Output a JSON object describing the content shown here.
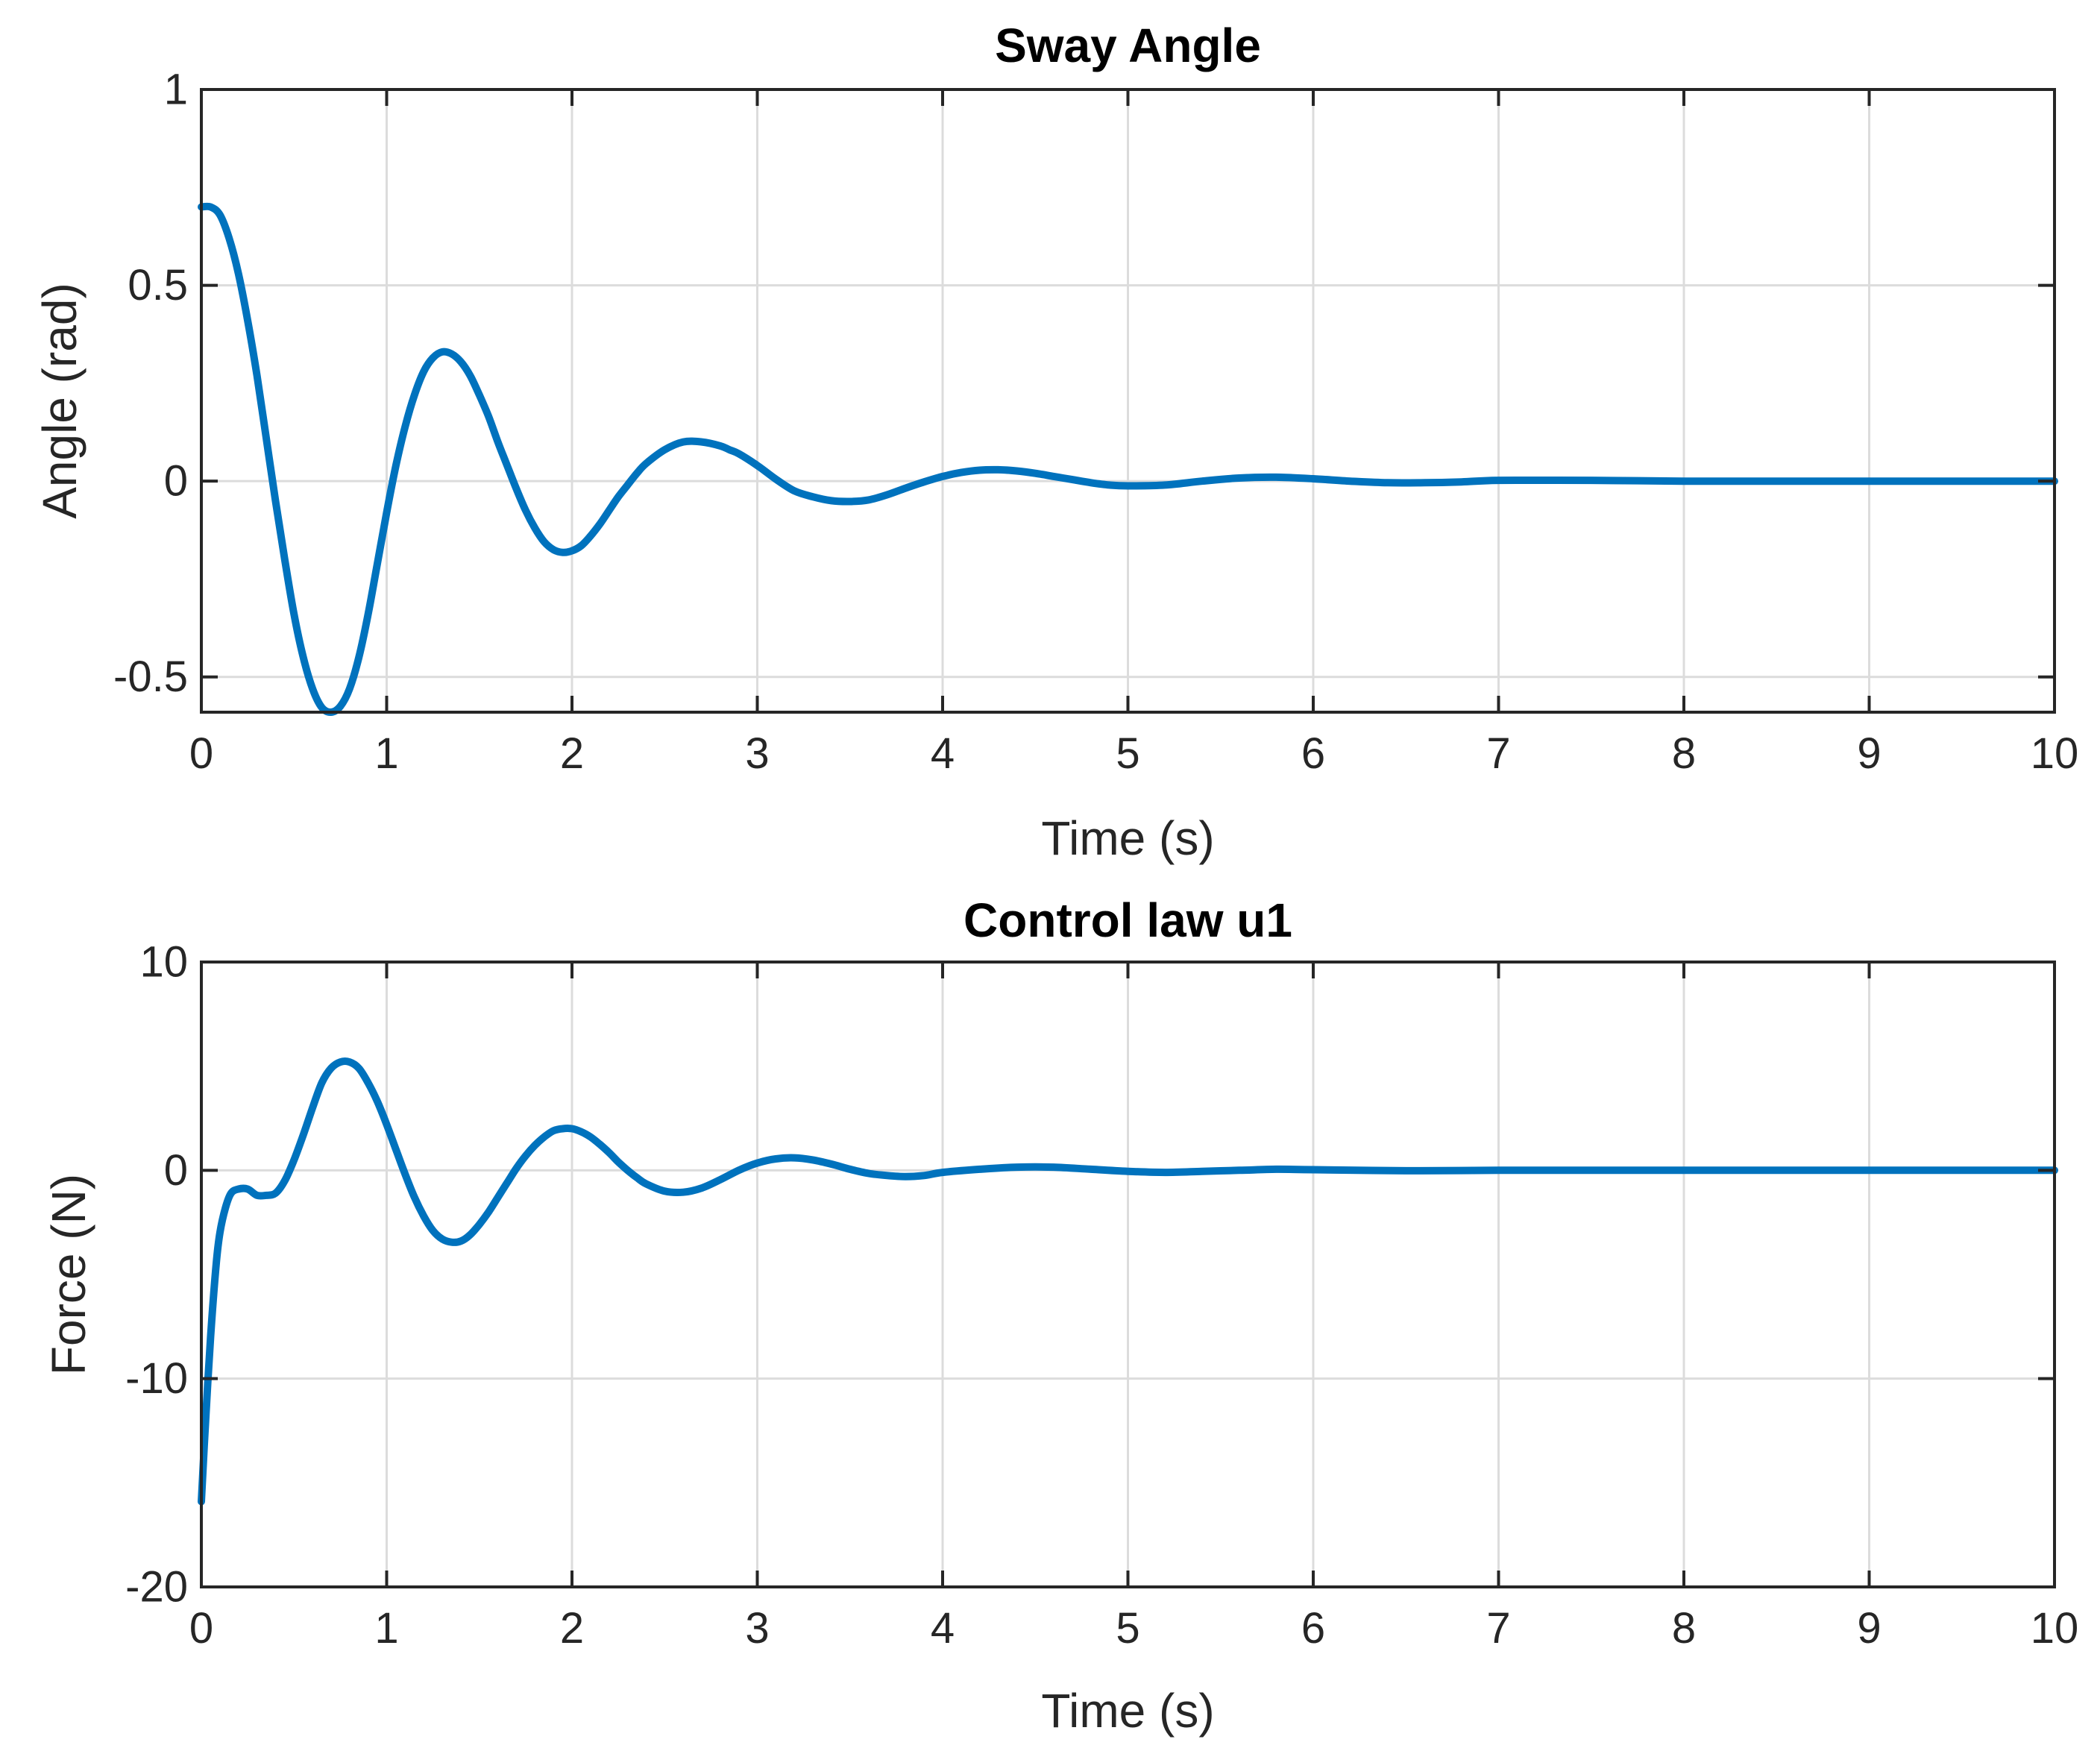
{
  "colors": {
    "series": "#0072BD",
    "axes": "#262626",
    "grid": "#dcdcdc"
  },
  "chart_data": [
    {
      "type": "line",
      "title": "Sway Angle",
      "xlabel": "Time (s)",
      "ylabel": "Angle (rad)",
      "xlim": [
        0,
        10
      ],
      "ylim": [
        -0.59,
        1
      ],
      "grid": true,
      "xticks": [
        0,
        1,
        2,
        3,
        4,
        5,
        6,
        7,
        8,
        9,
        10
      ],
      "xtick_labels": [
        "0",
        "1",
        "2",
        "3",
        "4",
        "5",
        "6",
        "7",
        "8",
        "9",
        "10"
      ],
      "yticks": [
        -0.5,
        0,
        0.5,
        1
      ],
      "ytick_labels": [
        "-0.5",
        "0",
        "0.5",
        "1"
      ],
      "series": [
        {
          "x": [
            0,
            0.05,
            0.1,
            0.15,
            0.2,
            0.25,
            0.3,
            0.35,
            0.4,
            0.45,
            0.5,
            0.55,
            0.6,
            0.65,
            0.7,
            0.75,
            0.8,
            0.85,
            0.9,
            0.95,
            1.0,
            1.05,
            1.1,
            1.15,
            1.2,
            1.25,
            1.3,
            1.35,
            1.4,
            1.45,
            1.5,
            1.55,
            1.6,
            1.65,
            1.7,
            1.75,
            1.8,
            1.85,
            1.9,
            1.95,
            2.0,
            2.05,
            2.1,
            2.15,
            2.2,
            2.25,
            2.3,
            2.35,
            2.4,
            2.5,
            2.6,
            2.7,
            2.8,
            2.85,
            2.9,
            3.0,
            3.1,
            3.2,
            3.3,
            3.4,
            3.5,
            3.6,
            3.7,
            3.8,
            3.9,
            4.0,
            4.1,
            4.2,
            4.3,
            4.4,
            4.5,
            4.6,
            4.7,
            4.8,
            4.9,
            5.0,
            5.2,
            5.4,
            5.6,
            5.8,
            6.0,
            6.2,
            6.4,
            6.6,
            6.8,
            7.0,
            7.5,
            8.0,
            8.5,
            9.0,
            9.5,
            10.0
          ],
          "y": [
            0.7,
            0.7,
            0.68,
            0.62,
            0.53,
            0.41,
            0.27,
            0.11,
            -0.05,
            -0.2,
            -0.34,
            -0.45,
            -0.53,
            -0.578,
            -0.59,
            -0.575,
            -0.53,
            -0.45,
            -0.34,
            -0.21,
            -0.08,
            0.04,
            0.14,
            0.22,
            0.28,
            0.315,
            0.33,
            0.325,
            0.305,
            0.27,
            0.22,
            0.165,
            0.1,
            0.04,
            -0.02,
            -0.075,
            -0.12,
            -0.155,
            -0.175,
            -0.182,
            -0.178,
            -0.165,
            -0.14,
            -0.11,
            -0.075,
            -0.04,
            -0.01,
            0.02,
            0.045,
            0.08,
            0.1,
            0.1,
            0.09,
            0.08,
            0.07,
            0.04,
            0.005,
            -0.025,
            -0.04,
            -0.05,
            -0.052,
            -0.048,
            -0.035,
            -0.018,
            -0.002,
            0.012,
            0.022,
            0.028,
            0.029,
            0.026,
            0.02,
            0.012,
            0.004,
            -0.004,
            -0.01,
            -0.012,
            -0.01,
            0.0,
            0.008,
            0.01,
            0.006,
            0.0,
            -0.004,
            -0.004,
            -0.002,
            0.002,
            0.002,
            0.0,
            0.0,
            0.0,
            0.0,
            0.0
          ]
        }
      ]
    },
    {
      "type": "line",
      "title": "Control law u1",
      "xlabel": "Time (s)",
      "ylabel": "Force (N)",
      "xlim": [
        0,
        10
      ],
      "ylim": [
        -20,
        10
      ],
      "grid": true,
      "xticks": [
        0,
        1,
        2,
        3,
        4,
        5,
        6,
        7,
        8,
        9,
        10
      ],
      "xtick_labels": [
        "0",
        "1",
        "2",
        "3",
        "4",
        "5",
        "6",
        "7",
        "8",
        "9",
        "10"
      ],
      "yticks": [
        -20,
        -10,
        0,
        10
      ],
      "ytick_labels": [
        "-20",
        "-10",
        "0",
        "10"
      ],
      "series": [
        {
          "x": [
            0,
            0.02,
            0.05,
            0.08,
            0.1,
            0.13,
            0.16,
            0.2,
            0.25,
            0.3,
            0.35,
            0.4,
            0.45,
            0.5,
            0.55,
            0.6,
            0.65,
            0.7,
            0.75,
            0.8,
            0.85,
            0.9,
            0.95,
            1.0,
            1.05,
            1.1,
            1.15,
            1.2,
            1.25,
            1.3,
            1.35,
            1.4,
            1.45,
            1.5,
            1.55,
            1.6,
            1.65,
            1.7,
            1.75,
            1.8,
            1.85,
            1.9,
            1.95,
            2.0,
            2.05,
            2.1,
            2.15,
            2.2,
            2.25,
            2.3,
            2.35,
            2.4,
            2.5,
            2.6,
            2.7,
            2.8,
            2.9,
            3.0,
            3.1,
            3.2,
            3.3,
            3.4,
            3.5,
            3.6,
            3.7,
            3.8,
            3.9,
            4.0,
            4.2,
            4.4,
            4.6,
            4.8,
            5.0,
            5.2,
            5.4,
            5.6,
            5.8,
            6.0,
            6.5,
            7.0,
            7.5,
            8.0,
            9.0,
            10.0
          ],
          "y": [
            -15.9,
            -12.5,
            -8.0,
            -4.5,
            -3.0,
            -1.8,
            -1.1,
            -0.9,
            -0.9,
            -1.2,
            -1.2,
            -1.1,
            -0.5,
            0.5,
            1.7,
            3.0,
            4.2,
            4.9,
            5.2,
            5.2,
            4.9,
            4.2,
            3.3,
            2.2,
            1.0,
            -0.2,
            -1.3,
            -2.2,
            -2.9,
            -3.3,
            -3.45,
            -3.4,
            -3.1,
            -2.6,
            -2.0,
            -1.3,
            -0.6,
            0.1,
            0.7,
            1.2,
            1.6,
            1.9,
            2.0,
            2.0,
            1.85,
            1.6,
            1.25,
            0.85,
            0.4,
            0.0,
            -0.35,
            -0.65,
            -1.0,
            -1.05,
            -0.85,
            -0.45,
            0.0,
            0.35,
            0.55,
            0.6,
            0.5,
            0.3,
            0.05,
            -0.15,
            -0.25,
            -0.3,
            -0.25,
            -0.1,
            0.05,
            0.15,
            0.15,
            0.05,
            -0.05,
            -0.1,
            -0.05,
            0.0,
            0.05,
            0.03,
            -0.02,
            0.0,
            0.0,
            0.0,
            0.0,
            0.0
          ]
        }
      ]
    }
  ]
}
